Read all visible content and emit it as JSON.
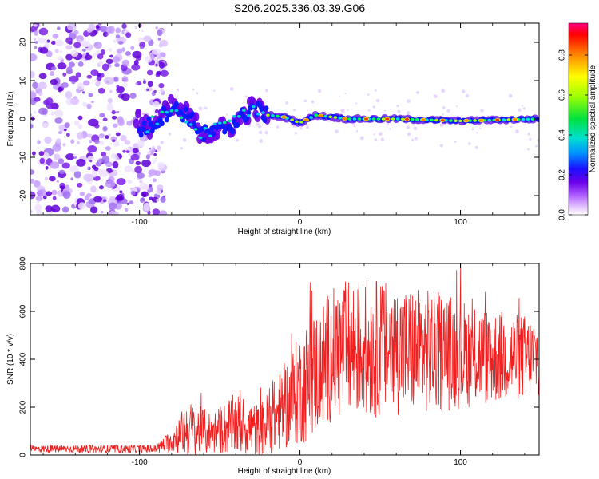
{
  "title": "S206.2025.336.03.39.G06",
  "chart_data": [
    {
      "type": "heatmap",
      "name": "spectrogram",
      "xlabel": "Height of straight line (km)",
      "ylabel": "Frequency (Hz)",
      "xlim": [
        -168,
        149
      ],
      "ylim": [
        -25,
        25
      ],
      "xticks": [
        -100,
        0,
        100
      ],
      "yticks": [
        -20,
        -10,
        0,
        10,
        20
      ],
      "colorbar": {
        "label": "Normalized spectral amplitude",
        "range": [
          0,
          0.96
        ],
        "ticks": [
          0.0,
          0.2,
          0.4,
          0.6,
          0.8
        ],
        "tick_labels": [
          "0.0",
          "0.2",
          "0.4",
          "0.6",
          "0.8"
        ]
      },
      "noise_region_x": [
        -168,
        -90
      ],
      "signal_ridge": [
        {
          "x": -100,
          "f": -3
        },
        {
          "x": -90,
          "f": -1
        },
        {
          "x": -80,
          "f": 3
        },
        {
          "x": -70,
          "f": 1
        },
        {
          "x": -60,
          "f": -4
        },
        {
          "x": -50,
          "f": -3
        },
        {
          "x": -40,
          "f": -1
        },
        {
          "x": -30,
          "f": 3
        },
        {
          "x": -20,
          "f": 1
        },
        {
          "x": -10,
          "f": 0.5
        },
        {
          "x": 0,
          "f": -1
        },
        {
          "x": 10,
          "f": 1
        },
        {
          "x": 30,
          "f": 0
        },
        {
          "x": 60,
          "f": 0
        },
        {
          "x": 100,
          "f": -0.5
        },
        {
          "x": 149,
          "f": 0
        }
      ]
    },
    {
      "type": "line",
      "name": "snr",
      "xlabel": "Height of straight line (km)",
      "ylabel": "SNR (10 * v/v)",
      "xlim": [
        -168,
        149
      ],
      "ylim": [
        0,
        800
      ],
      "xticks": [
        -100,
        0,
        100
      ],
      "yticks": [
        0,
        200,
        400,
        600,
        800
      ],
      "color": "#ee2020",
      "envelope": [
        {
          "x": -168,
          "mean": 25,
          "amp": 15
        },
        {
          "x": -90,
          "mean": 25,
          "amp": 18
        },
        {
          "x": -80,
          "mean": 60,
          "amp": 50
        },
        {
          "x": -70,
          "mean": 110,
          "amp": 120
        },
        {
          "x": -55,
          "mean": 90,
          "amp": 90
        },
        {
          "x": -40,
          "mean": 130,
          "amp": 130
        },
        {
          "x": -25,
          "mean": 100,
          "amp": 110
        },
        {
          "x": -10,
          "mean": 200,
          "amp": 180
        },
        {
          "x": 5,
          "mean": 310,
          "amp": 260
        },
        {
          "x": 20,
          "mean": 420,
          "amp": 280
        },
        {
          "x": 35,
          "mean": 450,
          "amp": 300
        },
        {
          "x": 60,
          "mean": 440,
          "amp": 280
        },
        {
          "x": 90,
          "mean": 430,
          "amp": 250
        },
        {
          "x": 120,
          "mean": 410,
          "amp": 200
        },
        {
          "x": 149,
          "mean": 410,
          "amp": 170
        }
      ]
    }
  ]
}
